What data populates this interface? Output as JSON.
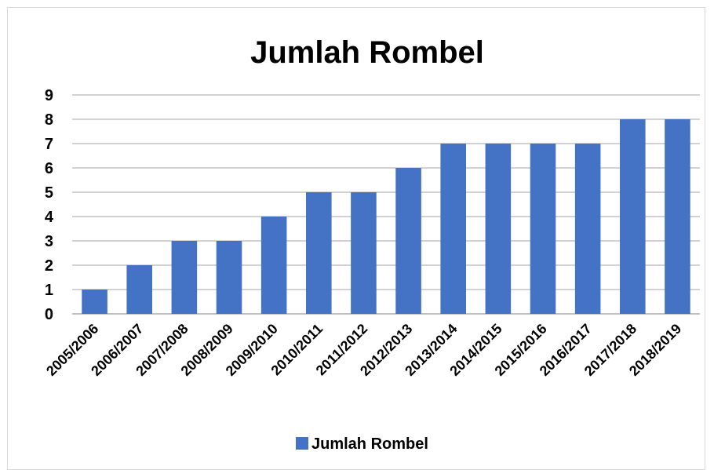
{
  "chart_data": {
    "type": "bar",
    "title": "Jumlah Rombel",
    "categories": [
      "2005/2006",
      "2006/2007",
      "2007/2008",
      "2008/2009",
      "2009/2010",
      "2010/2011",
      "2011/2012",
      "2012/2013",
      "2013/2014",
      "2014/2015",
      "2015/2016",
      "2016/2017",
      "2017/2018",
      "2018/2019"
    ],
    "series": [
      {
        "name": "Jumlah Rombel",
        "values": [
          1,
          2,
          3,
          3,
          4,
          5,
          5,
          6,
          7,
          7,
          7,
          7,
          8,
          8
        ],
        "color": "#4472c4"
      }
    ],
    "yticks": [
      "0",
      "1",
      "2",
      "3",
      "4",
      "5",
      "6",
      "7",
      "8",
      "9"
    ],
    "ylim": [
      0,
      9
    ],
    "grid": true,
    "legend_position": "bottom",
    "colors": {
      "bar": "#4472c4",
      "grid": "#a6a6a6",
      "axis": "#808080",
      "frame": "#d9d9d9"
    }
  }
}
